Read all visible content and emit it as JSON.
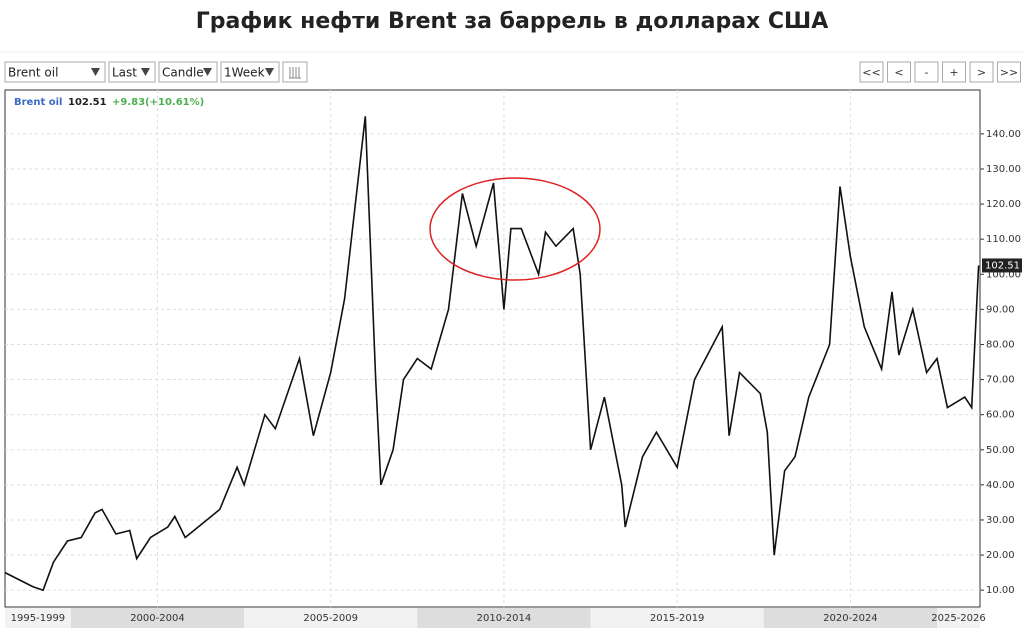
{
  "chart_data": {
    "type": "line",
    "title": "График нефти Brent за баррель в долларах США",
    "toolbar": {
      "selects": [
        "Brent oil",
        "Last",
        "Candle",
        "1Week"
      ],
      "buttons": [
        "<<",
        "<",
        "-",
        "+",
        ">",
        ">>"
      ]
    },
    "legend": {
      "name": "Brent oil",
      "change": "+9.83(+10.61%)"
    },
    "color": "#111111",
    "x": [
      1998.1,
      1998.5,
      1998.9,
      1999.2,
      1999.5,
      1999.9,
      2000.3,
      2000.7,
      2000.9,
      2001.3,
      2001.7,
      2001.9,
      2002.3,
      2002.8,
      2003.0,
      2003.3,
      2003.8,
      2004.3,
      2004.8,
      2005.0,
      2005.6,
      2005.9,
      2006.6,
      2007.0,
      2007.5,
      2007.9,
      2008.5,
      2008.8,
      2008.95,
      2009.3,
      2009.6,
      2010.0,
      2010.4,
      2010.9,
      2011.3,
      2011.7,
      2012.2,
      2012.5,
      2012.7,
      2013.0,
      2013.5,
      2013.7,
      2014.0,
      2014.5,
      2014.7,
      2015.0,
      2015.4,
      2015.9,
      2016.0,
      2016.5,
      2016.9,
      2017.5,
      2018.0,
      2018.8,
      2019.0,
      2019.3,
      2019.9,
      2020.1,
      2020.3,
      2020.6,
      2020.9,
      2021.3,
      2021.9,
      2022.2,
      2022.5,
      2022.9,
      2023.4,
      2023.7,
      2023.9,
      2024.3,
      2024.7,
      2025.0,
      2025.3,
      2025.8,
      2026.0,
      2026.2
    ],
    "values": [
      15,
      13,
      11,
      10,
      18,
      24,
      25,
      32,
      33,
      26,
      27,
      19,
      25,
      28,
      31,
      25,
      29,
      33,
      45,
      40,
      60,
      56,
      76,
      54,
      72,
      93,
      145,
      70,
      40,
      50,
      70,
      76,
      73,
      90,
      123,
      108,
      126,
      90,
      113,
      113,
      100,
      112,
      108,
      113,
      100,
      50,
      65,
      40,
      28,
      48,
      55,
      45,
      70,
      85,
      54,
      72,
      66,
      55,
      20,
      44,
      48,
      65,
      80,
      125,
      105,
      85,
      73,
      95,
      77,
      90,
      72,
      76,
      62,
      65,
      62,
      102.51
    ],
    "x_bands": [
      {
        "label": "1995-1999",
        "start": 1995,
        "end": 2000
      },
      {
        "label": "2000-2004",
        "start": 2000,
        "end": 2005
      },
      {
        "label": "2005-2009",
        "start": 2005,
        "end": 2010
      },
      {
        "label": "2010-2014",
        "start": 2010,
        "end": 2015
      },
      {
        "label": "2015-2019",
        "start": 2015,
        "end": 2020
      },
      {
        "label": "2020-2024",
        "start": 2020,
        "end": 2025
      },
      {
        "label": "2025-2026",
        "start": 2025,
        "end": 2030
      }
    ],
    "xlim": [
      1998.1,
      2026.24
    ],
    "ylim": [
      5.2,
      152.5
    ],
    "yticks": [
      {
        "value": 10,
        "label": "10.00"
      },
      {
        "value": 20,
        "label": "20.00"
      },
      {
        "value": 30,
        "label": "30.00"
      },
      {
        "value": 40,
        "label": "40.00"
      },
      {
        "value": 50,
        "label": "50.00"
      },
      {
        "value": 60,
        "label": "60.00"
      },
      {
        "value": 70,
        "label": "70.00"
      },
      {
        "value": 80,
        "label": "80.00"
      },
      {
        "value": 90,
        "label": "90.00"
      },
      {
        "value": 100,
        "label": "100.00"
      },
      {
        "value": 110,
        "label": "110.00"
      },
      {
        "value": 120,
        "label": "120.00"
      },
      {
        "value": 130,
        "label": "130.00"
      },
      {
        "value": 140,
        "label": "140.00"
      }
    ],
    "grid": true
  }
}
